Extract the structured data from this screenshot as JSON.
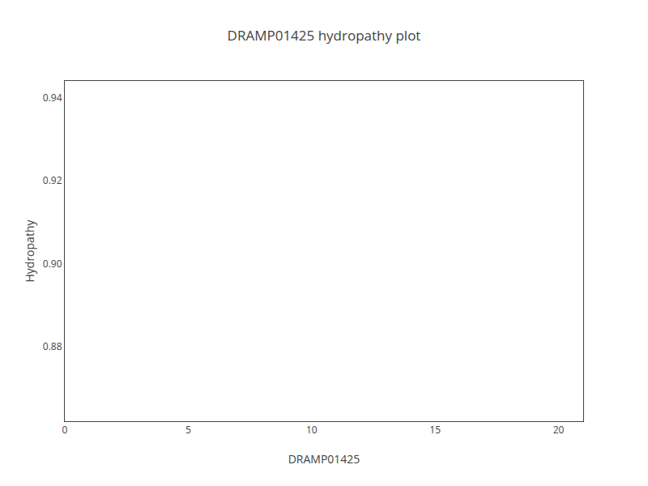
{
  "chart_data": {
    "type": "line",
    "title": "DRAMP01425 hydropathy plot",
    "xlabel": "DRAMP01425",
    "ylabel": "Hydropathy",
    "series": [],
    "xlim": [
      0,
      21
    ],
    "xticks": [
      0,
      5,
      10,
      15,
      20
    ],
    "ylim": [
      0.862,
      0.944
    ],
    "yticks": [
      0.88,
      {
        "value": 0.9,
        "label": "0.90"
      },
      0.92,
      0.94
    ],
    "grid": false
  }
}
